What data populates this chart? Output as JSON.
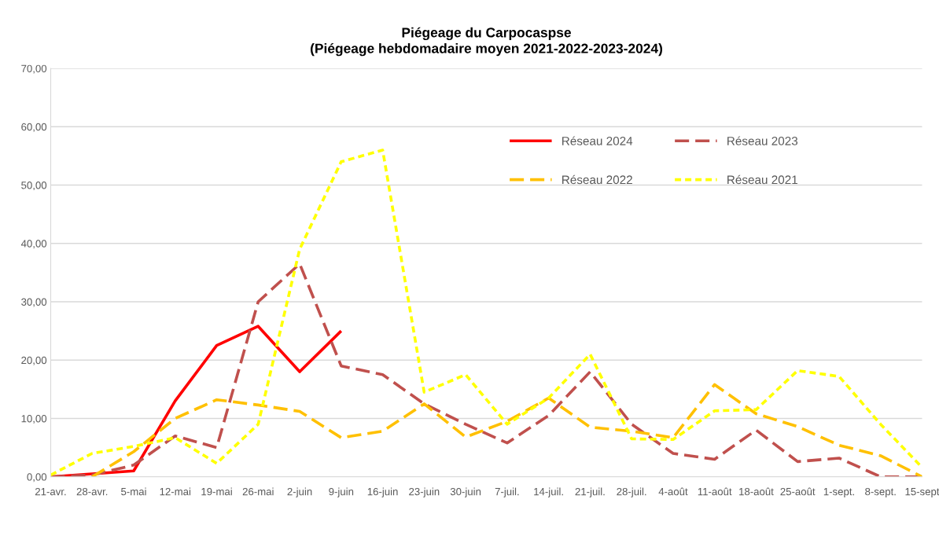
{
  "chart_data": {
    "type": "line",
    "title": "Piégeage du Carpocaspse\n(Piégeage hebdomadaire moyen 2021-2022-2023-2024)",
    "categories": [
      "21-avr.",
      "28-avr.",
      "5-mai",
      "12-mai",
      "19-mai",
      "26-mai",
      "2-juin",
      "9-juin",
      "16-juin",
      "23-juin",
      "30-juin",
      "7-juil.",
      "14-juil.",
      "21-juil.",
      "28-juil.",
      "4-août",
      "11-août",
      "18-août",
      "25-août",
      "1-sept.",
      "8-sept.",
      "15-sept"
    ],
    "series": [
      {
        "name": "Réseau 2024",
        "color": "#ff0000",
        "line_style": "solid",
        "values": [
          0,
          0.5,
          1,
          13,
          22.5,
          25.8,
          18,
          25,
          null,
          null,
          null,
          null,
          null,
          null,
          null,
          null,
          null,
          null,
          null,
          null,
          null,
          null
        ]
      },
      {
        "name": "Réseau 2023",
        "color": "#c0504d",
        "line_style": "dashed",
        "values": [
          0,
          0.3,
          2,
          7,
          5,
          30,
          36.5,
          19,
          17.5,
          12.5,
          9,
          5.8,
          10.5,
          18,
          9,
          4,
          3,
          8,
          2.6,
          3.2,
          0,
          0
        ]
      },
      {
        "name": "Réseau 2022",
        "color": "#ffc000",
        "line_style": "dashed",
        "values": [
          null,
          0,
          4.3,
          10,
          13.2,
          12.3,
          11.2,
          6.7,
          7.8,
          12.5,
          6.8,
          9.5,
          13.5,
          8.5,
          7.8,
          6.7,
          15.8,
          10.8,
          8.6,
          5.4,
          3.6,
          0
        ]
      },
      {
        "name": "Réseau 2021",
        "color": "#ffff00",
        "line_style": "dotted",
        "values": [
          0.3,
          4,
          5.2,
          6.7,
          2.3,
          9,
          39,
          54,
          56,
          14.5,
          17.5,
          9,
          13.5,
          21,
          6.5,
          6.4,
          11.3,
          11.5,
          18.2,
          17.2,
          9,
          1.6
        ]
      }
    ],
    "ylim": [
      0,
      70
    ],
    "yticks": [
      {
        "value": 0,
        "label": "0,00"
      },
      {
        "value": 10,
        "label": "10,00"
      },
      {
        "value": 20,
        "label": "20,00"
      },
      {
        "value": 30,
        "label": "30,00"
      },
      {
        "value": 40,
        "label": "40,00"
      },
      {
        "value": 50,
        "label": "50,00"
      },
      {
        "value": 60,
        "label": "60,00"
      },
      {
        "value": 70,
        "label": "70,00"
      }
    ],
    "grid": "y",
    "legend": "top right",
    "marker": "none"
  }
}
